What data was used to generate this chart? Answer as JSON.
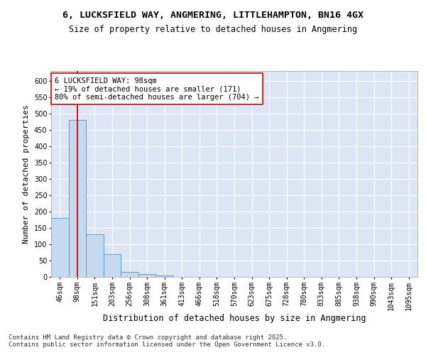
{
  "title_line1": "6, LUCKSFIELD WAY, ANGMERING, LITTLEHAMPTON, BN16 4GX",
  "title_line2": "Size of property relative to detached houses in Angmering",
  "xlabel": "Distribution of detached houses by size in Angmering",
  "ylabel": "Number of detached properties",
  "bar_color": "#c5d9f0",
  "bar_edge_color": "#5b9bd5",
  "plot_bg_color": "#dce6f5",
  "fig_bg_color": "#ffffff",
  "categories": [
    "46sqm",
    "98sqm",
    "151sqm",
    "203sqm",
    "256sqm",
    "308sqm",
    "361sqm",
    "413sqm",
    "466sqm",
    "518sqm",
    "570sqm",
    "623sqm",
    "675sqm",
    "728sqm",
    "780sqm",
    "833sqm",
    "885sqm",
    "938sqm",
    "990sqm",
    "1043sqm",
    "1095sqm"
  ],
  "values": [
    180,
    480,
    130,
    70,
    15,
    8,
    5,
    0,
    0,
    0,
    0,
    0,
    0,
    0,
    0,
    0,
    0,
    0,
    0,
    0,
    0
  ],
  "red_line_index": 1,
  "ylim": [
    0,
    630
  ],
  "yticks": [
    0,
    50,
    100,
    150,
    200,
    250,
    300,
    350,
    400,
    450,
    500,
    550,
    600
  ],
  "annotation_text": "6 LUCKSFIELD WAY: 98sqm\n← 19% of detached houses are smaller (171)\n80% of semi-detached houses are larger (704) →",
  "red_line_color": "#cc0000",
  "footer_line1": "Contains HM Land Registry data © Crown copyright and database right 2025.",
  "footer_line2": "Contains public sector information licensed under the Open Government Licence v3.0.",
  "title_fontsize": 9.5,
  "subtitle_fontsize": 8.5,
  "xlabel_fontsize": 8.5,
  "ylabel_fontsize": 8,
  "tick_fontsize": 7,
  "annotation_fontsize": 7.5,
  "footer_fontsize": 6.5
}
